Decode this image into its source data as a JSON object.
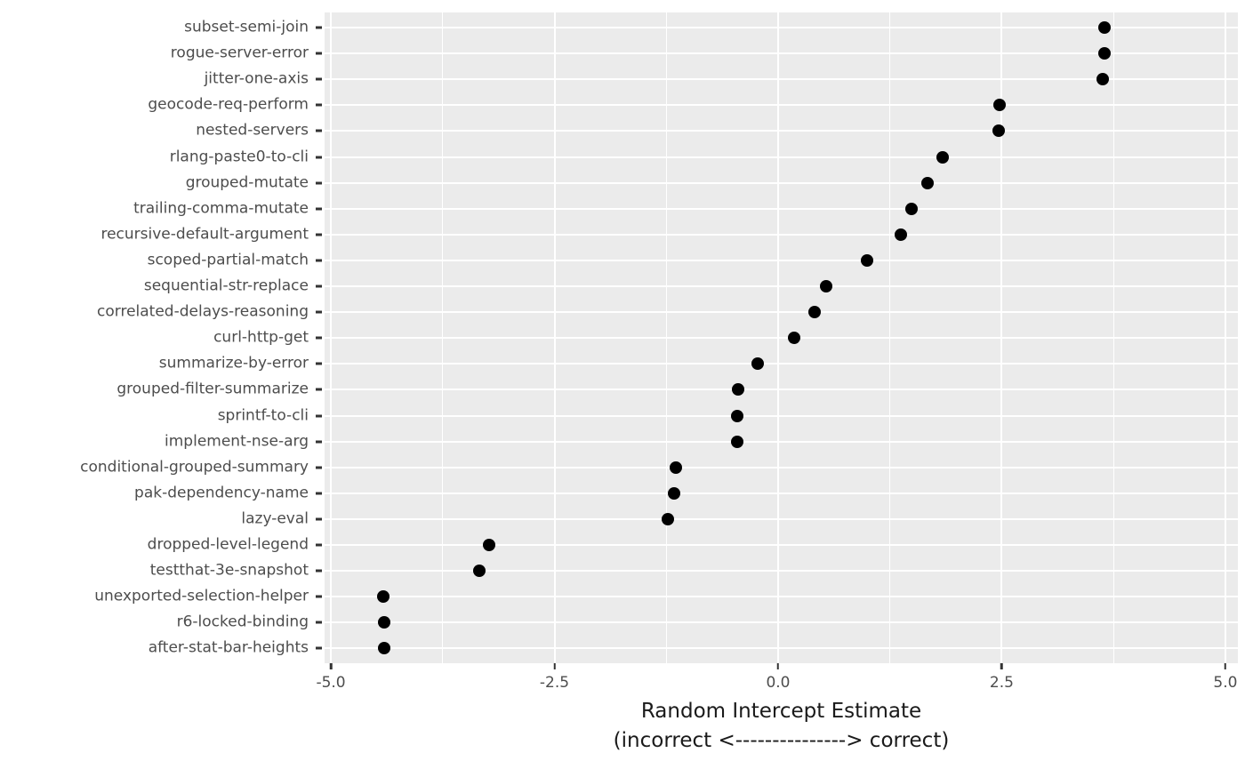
{
  "chart_data": {
    "type": "scatter",
    "variant": "cleveland-dot-plot",
    "title": "",
    "xlabel": "Random Intercept Estimate",
    "xlabel_sub": "(incorrect <---------------> correct)",
    "ylabel": "",
    "legend": false,
    "grid": true,
    "xlim": [
      -5.07,
      5.14
    ],
    "x_ticks": [
      -5.0,
      -2.5,
      0.0,
      2.5,
      5.0
    ],
    "x_tick_labels": [
      "-5.0",
      "-2.5",
      "0.0",
      "2.5",
      "5.0"
    ],
    "x_minor_ticks": [
      -3.75,
      -1.25,
      1.25,
      3.75
    ],
    "categories": [
      "subset-semi-join",
      "rogue-server-error",
      "jitter-one-axis",
      "geocode-req-perform",
      "nested-servers",
      "rlang-paste0-to-cli",
      "grouped-mutate",
      "trailing-comma-mutate",
      "recursive-default-argument",
      "scoped-partial-match",
      "sequential-str-replace",
      "correlated-delays-reasoning",
      "curl-http-get",
      "summarize-by-error",
      "grouped-filter-summarize",
      "sprintf-to-cli",
      "implement-nse-arg",
      "conditional-grouped-summary",
      "pak-dependency-name",
      "lazy-eval",
      "dropped-level-legend",
      "testthat-3e-snapshot",
      "unexported-selection-helper",
      "r6-locked-binding",
      "after-stat-bar-heights"
    ],
    "values": [
      3.65,
      3.65,
      3.63,
      2.48,
      2.47,
      1.84,
      1.67,
      1.49,
      1.37,
      0.99,
      0.54,
      0.41,
      0.18,
      -0.23,
      -0.45,
      -0.46,
      -0.46,
      -1.14,
      -1.16,
      -1.23,
      -3.23,
      -3.34,
      -4.41,
      -4.4,
      -4.4
    ],
    "colors": {
      "figure_background": "#FFFFFF",
      "panel_background": "#EBEBEB",
      "grid": "#FFFFFF",
      "point": "#000000",
      "tick_label": "#4D4D4D",
      "axis_title": "#1A1A1A",
      "tick_mark": "#333333"
    }
  }
}
